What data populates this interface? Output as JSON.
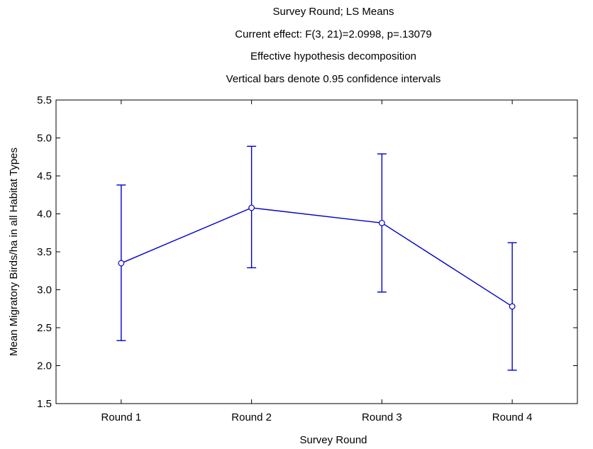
{
  "chart_data": {
    "type": "line",
    "title_lines": [
      "Survey Round; LS Means",
      "Current effect: F(3, 21)=2.0998, p=.13079",
      "Effective hypothesis decomposition",
      "Vertical bars denote 0.95 confidence intervals"
    ],
    "xlabel": "Survey Round",
    "ylabel": "Mean Migratory Birds/ha in all Habitat Types",
    "categories": [
      "Round 1",
      "Round 2",
      "Round 3",
      "Round 4"
    ],
    "series": [
      {
        "values": [
          3.35,
          4.08,
          3.88,
          2.78
        ],
        "ci_lower": [
          2.33,
          3.29,
          2.97,
          1.94
        ],
        "ci_upper": [
          4.38,
          4.89,
          4.79,
          3.62
        ]
      }
    ],
    "ylim": [
      1.5,
      5.5
    ],
    "yticks": [
      "1.5",
      "2.0",
      "2.5",
      "3.0",
      "3.5",
      "4.0",
      "4.5",
      "5.0",
      "5.5"
    ],
    "grid": false,
    "colors": {
      "series": "#0000cc",
      "axis": "#000000"
    }
  }
}
